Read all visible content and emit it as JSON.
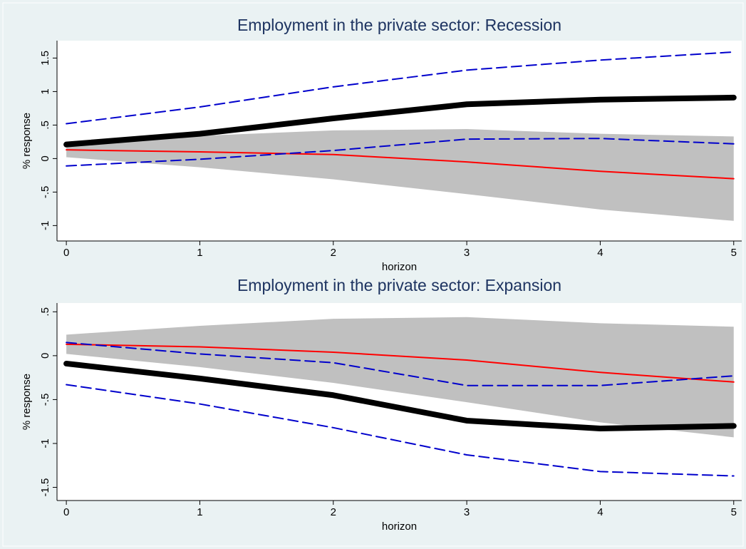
{
  "chart_data": [
    {
      "type": "line",
      "title": "Employment in the private sector: Recession",
      "x_label": "horizon",
      "y_label": "% response",
      "x": [
        0,
        1,
        2,
        3,
        4,
        5
      ],
      "xlim": [
        -0.07,
        5.06
      ],
      "xticks": [
        0,
        1,
        2,
        3,
        4,
        5
      ],
      "ylim": [
        -1.23,
        1.76
      ],
      "yticks": [
        -1,
        {
          "value": -0.5,
          "label": "-.5"
        },
        0,
        {
          "value": 0.5,
          "label": ".5"
        },
        1,
        1.5
      ],
      "grid": false,
      "band": {
        "color": "#c0c0c0",
        "lower": [
          0.02,
          -0.13,
          -0.31,
          -0.53,
          -0.76,
          -0.93
        ],
        "upper": [
          0.24,
          0.34,
          0.42,
          0.44,
          0.37,
          0.33
        ]
      },
      "series": [
        {
          "color": "#ff0000",
          "width": 2,
          "dash": false,
          "values": [
            0.13,
            0.1,
            0.06,
            -0.05,
            -0.19,
            -0.3
          ]
        },
        {
          "color": "#0000cc",
          "width": 2,
          "dash": true,
          "values": [
            0.52,
            0.77,
            1.07,
            1.32,
            1.47,
            1.59
          ]
        },
        {
          "color": "#0000cc",
          "width": 2,
          "dash": true,
          "values": [
            -0.11,
            -0.01,
            0.12,
            0.29,
            0.3,
            0.22
          ]
        },
        {
          "color": "#000000",
          "width": 8,
          "dash": false,
          "values": [
            0.21,
            0.37,
            0.6,
            0.81,
            0.88,
            0.91
          ]
        }
      ]
    },
    {
      "type": "line",
      "title": "Employment in the private sector: Expansion",
      "x_label": "horizon",
      "y_label": "% response",
      "x": [
        0,
        1,
        2,
        3,
        4,
        5
      ],
      "xlim": [
        -0.07,
        5.06
      ],
      "xticks": [
        0,
        1,
        2,
        3,
        4,
        5
      ],
      "ylim": [
        -1.65,
        0.6
      ],
      "yticks": [
        -1.5,
        -1,
        {
          "value": -0.5,
          "label": "-.5"
        },
        0,
        {
          "value": 0.5,
          "label": ".5"
        }
      ],
      "grid": false,
      "band": {
        "color": "#c0c0c0",
        "lower": [
          0.02,
          -0.13,
          -0.31,
          -0.53,
          -0.76,
          -0.93
        ],
        "upper": [
          0.24,
          0.34,
          0.42,
          0.44,
          0.37,
          0.33
        ]
      },
      "series": [
        {
          "color": "#ff0000",
          "width": 2,
          "dash": false,
          "values": [
            0.13,
            0.1,
            0.04,
            -0.05,
            -0.19,
            -0.3
          ]
        },
        {
          "color": "#0000cc",
          "width": 2,
          "dash": true,
          "values": [
            0.15,
            0.02,
            -0.08,
            -0.34,
            -0.34,
            -0.23
          ]
        },
        {
          "color": "#0000cc",
          "width": 2,
          "dash": true,
          "values": [
            -0.33,
            -0.55,
            -0.82,
            -1.13,
            -1.32,
            -1.37
          ]
        },
        {
          "color": "#000000",
          "width": 8,
          "dash": false,
          "values": [
            -0.09,
            -0.26,
            -0.45,
            -0.74,
            -0.83,
            -0.8
          ]
        }
      ]
    }
  ]
}
